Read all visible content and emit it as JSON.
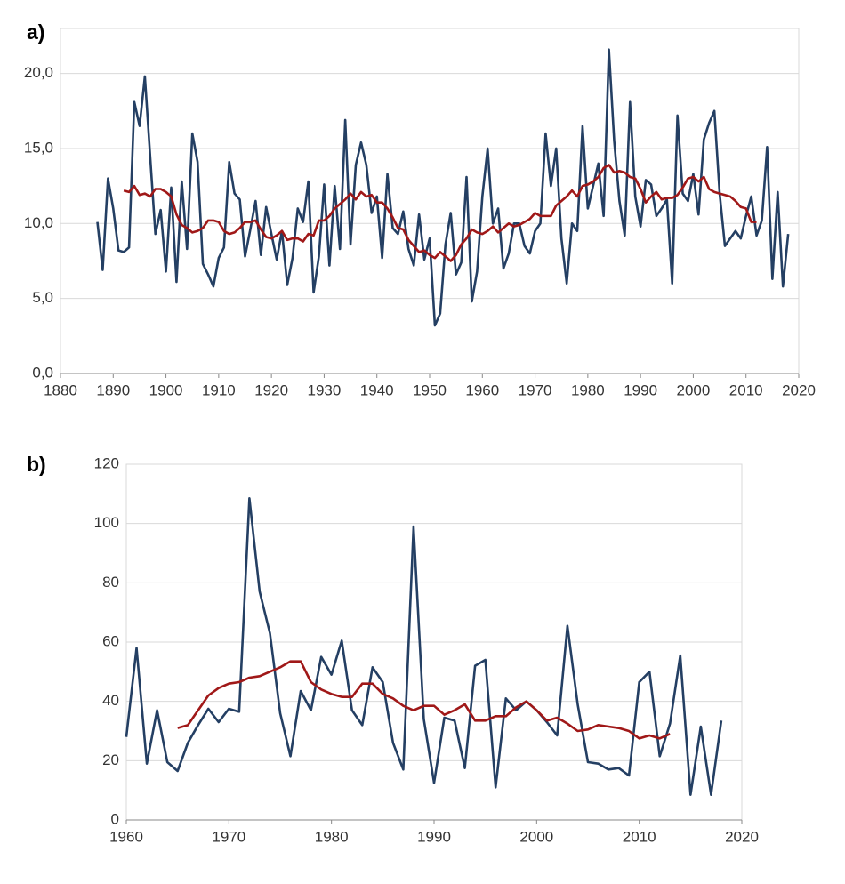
{
  "chart_data": [
    {
      "type": "line",
      "label": "a)",
      "x": [
        1887,
        1888,
        1889,
        1890,
        1891,
        1892,
        1893,
        1894,
        1895,
        1896,
        1897,
        1898,
        1899,
        1900,
        1901,
        1902,
        1903,
        1904,
        1905,
        1906,
        1907,
        1908,
        1909,
        1910,
        1911,
        1912,
        1913,
        1914,
        1915,
        1916,
        1917,
        1918,
        1919,
        1920,
        1921,
        1922,
        1923,
        1924,
        1925,
        1926,
        1927,
        1928,
        1929,
        1930,
        1931,
        1932,
        1933,
        1934,
        1935,
        1936,
        1937,
        1938,
        1939,
        1940,
        1941,
        1942,
        1943,
        1944,
        1945,
        1946,
        1947,
        1948,
        1949,
        1950,
        1951,
        1952,
        1953,
        1954,
        1955,
        1956,
        1957,
        1958,
        1959,
        1960,
        1961,
        1962,
        1963,
        1964,
        1965,
        1966,
        1967,
        1968,
        1969,
        1970,
        1971,
        1972,
        1973,
        1974,
        1975,
        1976,
        1977,
        1978,
        1979,
        1980,
        1981,
        1982,
        1983,
        1984,
        1985,
        1986,
        1987,
        1988,
        1989,
        1990,
        1991,
        1992,
        1993,
        1994,
        1995,
        1996,
        1997,
        1998,
        1999,
        2000,
        2001,
        2002,
        2003,
        2004,
        2005,
        2006,
        2007,
        2008,
        2009,
        2010,
        2011,
        2012,
        2013,
        2014,
        2015,
        2016,
        2017,
        2018
      ],
      "series": [
        {
          "color": "#243f63",
          "values": [
            10.1,
            6.9,
            13.0,
            11.0,
            8.2,
            8.1,
            8.4,
            18.1,
            16.5,
            19.8,
            14.5,
            9.3,
            10.9,
            6.8,
            12.4,
            6.1,
            12.8,
            8.3,
            16.0,
            14.1,
            7.3,
            6.6,
            5.8,
            7.7,
            8.4,
            14.1,
            12.0,
            11.6,
            7.8,
            9.6,
            11.5,
            7.9,
            11.1,
            9.3,
            7.6,
            9.5,
            5.9,
            7.7,
            11.0,
            10.1,
            12.8,
            5.4,
            7.8,
            12.6,
            7.2,
            12.5,
            8.3,
            16.9,
            8.6,
            13.9,
            15.4,
            13.9,
            10.7,
            11.8,
            7.7,
            13.3,
            9.7,
            9.3,
            10.8,
            8.3,
            7.2,
            10.6,
            7.6,
            9.0,
            3.2,
            4.0,
            8.6,
            10.7,
            6.6,
            7.4,
            13.1,
            4.8,
            6.8,
            11.8,
            15.0,
            10.0,
            11.0,
            7.0,
            8.0,
            10.0,
            10.0,
            8.5,
            8.0,
            9.5,
            10.0,
            16.0,
            12.5,
            15.0,
            9.0,
            6.0,
            10.0,
            9.5,
            16.5,
            11.0,
            12.5,
            14.0,
            10.5,
            21.6,
            15.5,
            11.5,
            9.2,
            18.1,
            11.8,
            9.8,
            12.9,
            12.6,
            10.5,
            11.0,
            11.6,
            6.0,
            17.2,
            12.0,
            11.5,
            13.3,
            10.6,
            15.6,
            16.7,
            17.5,
            12.0,
            8.5,
            9.0,
            9.5,
            9.0,
            10.5,
            11.8,
            9.2,
            10.2,
            15.1,
            6.3,
            12.1,
            5.8,
            9.3
          ]
        },
        {
          "color": "#a01818",
          "values": [
            null,
            null,
            null,
            null,
            null,
            12.2,
            12.1,
            12.5,
            11.9,
            12.0,
            11.8,
            12.3,
            12.3,
            12.1,
            11.8,
            10.6,
            9.9,
            9.7,
            9.4,
            9.5,
            9.7,
            10.2,
            10.2,
            10.1,
            9.5,
            9.3,
            9.4,
            9.7,
            10.1,
            10.1,
            10.2,
            9.6,
            9.1,
            9.0,
            9.2,
            9.5,
            8.9,
            9.0,
            9.0,
            8.8,
            9.3,
            9.2,
            10.2,
            10.2,
            10.5,
            11.0,
            11.3,
            11.6,
            12.0,
            11.6,
            12.1,
            11.8,
            11.9,
            11.4,
            11.4,
            11.0,
            10.4,
            9.7,
            9.6,
            8.9,
            8.5,
            8.1,
            8.2,
            7.9,
            7.7,
            8.1,
            7.8,
            7.5,
            7.9,
            8.6,
            9.0,
            9.6,
            9.4,
            9.3,
            9.5,
            9.8,
            9.4,
            9.7,
            10.0,
            9.8,
            9.9,
            10.1,
            10.3,
            10.7,
            10.5,
            10.5,
            10.5,
            11.2,
            11.5,
            11.8,
            12.2,
            11.8,
            12.5,
            12.6,
            12.8,
            13.1,
            13.7,
            13.9,
            13.4,
            13.5,
            13.4,
            13.1,
            13.0,
            12.3,
            11.4,
            11.8,
            12.1,
            11.6,
            11.7,
            11.7,
            11.9,
            12.4,
            13.0,
            13.1,
            12.8,
            13.1,
            12.3,
            12.1,
            12.0,
            11.9,
            11.8,
            11.5,
            11.1,
            11.0,
            10.1,
            10.1,
            null,
            null,
            null,
            null,
            null,
            null
          ]
        }
      ],
      "xlim": [
        1880,
        2020
      ],
      "xticks": [
        1880,
        1890,
        1900,
        1910,
        1920,
        1930,
        1940,
        1950,
        1960,
        1970,
        1980,
        1990,
        2000,
        2010,
        2020
      ],
      "ylim": [
        0,
        23
      ],
      "yticks": [
        {
          "value": 0,
          "label": "0,0"
        },
        {
          "value": 5,
          "label": "5,0"
        },
        {
          "value": 10,
          "label": "10,0"
        },
        {
          "value": 15,
          "label": "15,0"
        },
        {
          "value": 20,
          "label": "20,0"
        }
      ],
      "grid": true
    },
    {
      "type": "line",
      "label": "b)",
      "x": [
        1960,
        1961,
        1962,
        1963,
        1964,
        1965,
        1966,
        1967,
        1968,
        1969,
        1970,
        1971,
        1972,
        1973,
        1974,
        1975,
        1976,
        1977,
        1978,
        1979,
        1980,
        1981,
        1982,
        1983,
        1984,
        1985,
        1986,
        1987,
        1988,
        1989,
        1990,
        1991,
        1992,
        1993,
        1994,
        1995,
        1996,
        1997,
        1998,
        1999,
        2000,
        2001,
        2002,
        2003,
        2004,
        2005,
        2006,
        2007,
        2008,
        2009,
        2010,
        2011,
        2012,
        2013,
        2014,
        2015,
        2016,
        2017,
        2018
      ],
      "series": [
        {
          "color": "#243f63",
          "values": [
            28,
            58,
            19,
            37,
            19.5,
            16.5,
            26,
            32,
            37.5,
            33,
            37.5,
            36.5,
            108.5,
            77,
            63,
            36,
            21.5,
            43.5,
            37,
            55,
            49,
            60.5,
            37,
            32,
            51.5,
            46.5,
            26,
            17,
            99,
            34,
            12.5,
            34.5,
            33.5,
            17.5,
            52,
            54,
            11,
            41,
            37,
            40,
            37,
            33,
            28.5,
            65.5,
            39,
            19.5,
            19,
            17,
            17.5,
            15,
            46.5,
            50,
            21.5,
            32.5,
            55.5,
            8.5,
            31.5,
            8.5,
            33.5
          ]
        },
        {
          "color": "#a01818",
          "values": [
            null,
            null,
            null,
            null,
            null,
            31,
            32,
            37,
            42,
            44.5,
            46,
            46.5,
            48,
            48.5,
            50,
            51.5,
            53.5,
            53.5,
            46.5,
            44,
            42.5,
            41.5,
            41.5,
            46,
            46,
            42.5,
            41,
            38.5,
            37,
            38.5,
            38.5,
            35.5,
            37,
            39,
            33.5,
            33.5,
            35,
            35,
            38,
            40,
            37,
            33.5,
            34.5,
            32.5,
            30,
            30.5,
            32,
            31.5,
            31,
            30,
            27.5,
            28.5,
            27.5,
            29,
            null,
            null,
            null,
            null,
            null
          ]
        }
      ],
      "xlim": [
        1960,
        2020
      ],
      "xticks": [
        1960,
        1970,
        1980,
        1990,
        2000,
        2010,
        2020
      ],
      "ylim": [
        0,
        120
      ],
      "yticks": [
        0,
        20,
        40,
        60,
        80,
        100,
        120
      ],
      "grid": true
    }
  ]
}
